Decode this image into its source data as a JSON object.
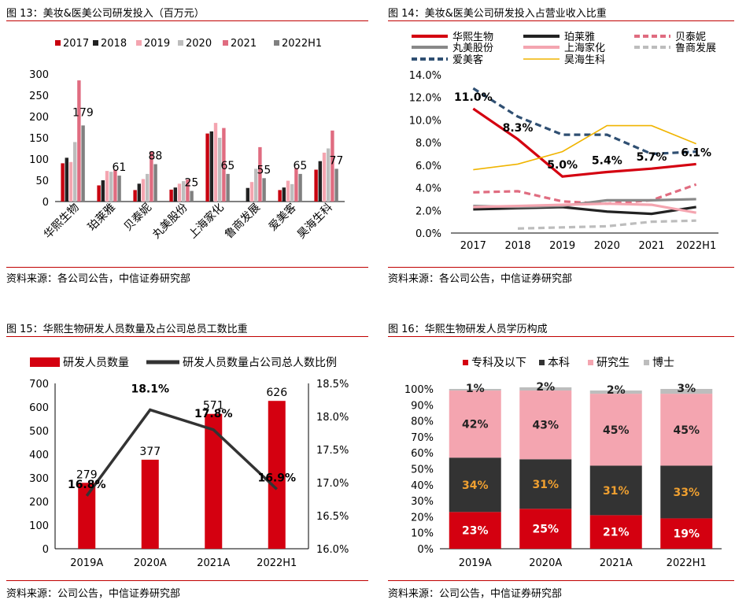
{
  "panels": {
    "p13": {
      "title": "图 13：美妆&医美公司研发投入（百万元）",
      "source": "资料来源：各公司公告，中信证券研究部"
    },
    "p14": {
      "title": "图 14：美妆&医美公司研发投入占营业收入比重",
      "source": "资料来源：各公司公告，中信证券研究部"
    },
    "p15": {
      "title": "图 15：华熙生物研发人员数量及占公司总员工数比重",
      "source": "资料来源：公司公告，中信证券研究部"
    },
    "p16": {
      "title": "图 16：华熙生物研发人员学历构成",
      "source": "资料来源：公司公告，中信证券研究部"
    }
  },
  "chart_data": [
    {
      "id": "fig13",
      "type": "bar",
      "title": "美妆&医美公司研发投入（百万元）",
      "categories": [
        "华熙生物",
        "珀莱雅",
        "贝泰妮",
        "丸美股份",
        "上海家化",
        "鲁商发展",
        "爱美客",
        "昊海生科"
      ],
      "series": [
        {
          "name": "2017",
          "color": "#c8000f",
          "values": [
            90,
            38,
            27,
            28,
            160,
            null,
            27,
            75
          ]
        },
        {
          "name": "2018",
          "color": "#222222",
          "values": [
            103,
            50,
            42,
            33,
            165,
            32,
            33,
            95
          ]
        },
        {
          "name": "2019",
          "color": "#f4a5b0",
          "values": [
            93,
            72,
            53,
            42,
            185,
            46,
            49,
            115
          ]
        },
        {
          "name": "2020",
          "color": "#bdbdbd",
          "values": [
            140,
            70,
            65,
            48,
            150,
            77,
            41,
            125
          ]
        },
        {
          "name": "2021",
          "color": "#e06c80",
          "values": [
            285,
            75,
            118,
            52,
            173,
            128,
            79,
            167
          ]
        },
        {
          "name": "2022H1",
          "color": "#808080",
          "values": [
            179,
            61,
            88,
            25,
            65,
            55,
            65,
            77
          ]
        }
      ],
      "data_labels": [
        "179",
        "61",
        "88",
        "25",
        "65",
        "55",
        "65",
        "77"
      ],
      "ylim": [
        0,
        300
      ],
      "yticks": [
        0,
        50,
        100,
        150,
        200,
        250,
        300
      ],
      "legend": "top"
    },
    {
      "id": "fig14",
      "type": "line",
      "title": "美妆&医美公司研发投入占营业收入比重",
      "x": [
        "2017",
        "2018",
        "2019",
        "2020",
        "2021",
        "2022H1"
      ],
      "series": [
        {
          "name": "华熙生物",
          "color": "#d40010",
          "style": "solid-thick",
          "values": [
            11.0,
            8.3,
            5.0,
            5.4,
            5.7,
            6.1
          ]
        },
        {
          "name": "珀莱雅",
          "color": "#222222",
          "style": "solid-thick",
          "values": [
            2.1,
            2.2,
            2.3,
            1.9,
            1.7,
            2.3
          ]
        },
        {
          "name": "贝泰妮",
          "color": "#e06c80",
          "style": "dashed",
          "values": [
            3.6,
            3.7,
            2.8,
            2.6,
            2.9,
            4.3
          ]
        },
        {
          "name": "丸美股份",
          "color": "#888888",
          "style": "solid-thick",
          "values": [
            2.4,
            2.3,
            2.4,
            2.9,
            2.9,
            3.0
          ]
        },
        {
          "name": "上海家化",
          "color": "#f4a5b0",
          "style": "solid-thick",
          "values": [
            2.3,
            2.4,
            2.5,
            2.6,
            2.5,
            1.8
          ]
        },
        {
          "name": "鲁商发展",
          "color": "#bdbdbd",
          "style": "dashed",
          "values": [
            null,
            0.4,
            0.5,
            0.6,
            1.0,
            1.1
          ]
        },
        {
          "name": "爱美客",
          "color": "#2f4f72",
          "style": "dashed",
          "values": [
            12.8,
            10.3,
            8.7,
            8.7,
            7.0,
            7.2
          ]
        },
        {
          "name": "昊海生科",
          "color": "#f0b400",
          "style": "solid-thin",
          "values": [
            5.6,
            6.1,
            7.2,
            9.5,
            9.5,
            7.9
          ]
        }
      ],
      "data_labels": [
        "11.0%",
        "8.3%",
        "5.0%",
        "5.4%",
        "5.7%",
        "6.1%"
      ],
      "ylim": [
        0,
        14
      ],
      "yticks": [
        "0.0%",
        "2.0%",
        "4.0%",
        "6.0%",
        "8.0%",
        "10.0%",
        "12.0%",
        "14.0%"
      ],
      "legend": "top"
    },
    {
      "id": "fig15",
      "type": "bar",
      "title": "华熙生物研发人员数量及占公司总员工数比重",
      "categories": [
        "2019A",
        "2020A",
        "2021A",
        "2022H1"
      ],
      "series": [
        {
          "name": "研发人员数量",
          "color": "#d40010",
          "axis": "left",
          "values": [
            279,
            377,
            571,
            626
          ]
        },
        {
          "name": "研发人员数量占公司总人数比例",
          "color": "#333333",
          "axis": "right",
          "type": "line",
          "values": [
            16.8,
            18.1,
            17.8,
            16.9
          ]
        }
      ],
      "bar_labels": [
        "279",
        "377",
        "571",
        "626"
      ],
      "line_labels": [
        "16.8%",
        "18.1%",
        "17.8%",
        "16.9%"
      ],
      "ylim": [
        0,
        700
      ],
      "yticks": [
        0,
        100,
        200,
        300,
        400,
        500,
        600,
        700
      ],
      "y2lim": [
        16.0,
        18.5
      ],
      "y2ticks": [
        "16.0%",
        "16.5%",
        "17.0%",
        "17.5%",
        "18.0%",
        "18.5%"
      ],
      "legend": "top"
    },
    {
      "id": "fig16",
      "type": "bar",
      "stacked": true,
      "title": "华熙生物研发人员学历构成",
      "categories": [
        "2019A",
        "2020A",
        "2021A",
        "2022H1"
      ],
      "series": [
        {
          "name": "专科及以下",
          "color": "#d40010",
          "label_color": "#ffffff",
          "values": [
            23,
            25,
            21,
            19
          ],
          "labels": [
            "23%",
            "25%",
            "21%",
            "19%"
          ]
        },
        {
          "name": "本科",
          "color": "#333333",
          "label_color": "#f0a030",
          "values": [
            34,
            31,
            31,
            33
          ],
          "labels": [
            "34%",
            "31%",
            "31%",
            "33%"
          ]
        },
        {
          "name": "研究生",
          "color": "#f4a5b0",
          "label_color": "#222222",
          "values": [
            42,
            43,
            45,
            45
          ],
          "labels": [
            "42%",
            "43%",
            "45%",
            "45%"
          ]
        },
        {
          "name": "博士",
          "color": "#bdbdbd",
          "label_color": "#222222",
          "values": [
            1,
            2,
            2,
            3
          ],
          "labels": [
            "1%",
            "2%",
            "2%",
            "3%"
          ]
        }
      ],
      "ylim": [
        0,
        100
      ],
      "yticks": [
        "0%",
        "10%",
        "20%",
        "30%",
        "40%",
        "50%",
        "60%",
        "70%",
        "80%",
        "90%",
        "100%"
      ],
      "legend": "top"
    }
  ]
}
